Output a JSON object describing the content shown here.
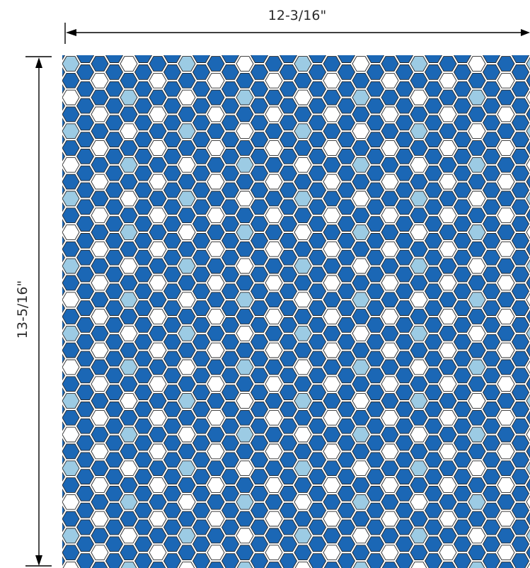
{
  "dimensions": {
    "width_label": "12-3/16\"",
    "height_label": "13-5/16\""
  },
  "tile_sheet": {
    "shape": "hexagon",
    "colors": {
      "dark_blue": "#1b67b5",
      "light_blue": "#9ccbe4",
      "white": "#ffffff",
      "outline": "#2a2a2a"
    }
  }
}
